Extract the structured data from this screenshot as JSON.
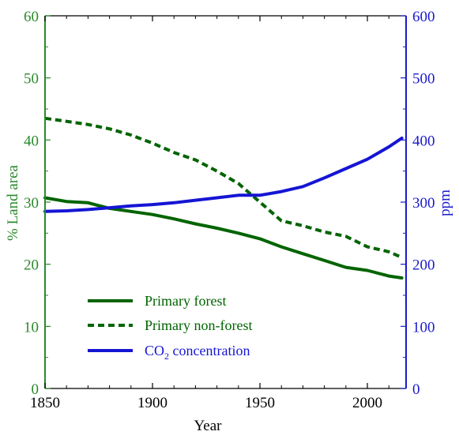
{
  "chart_data": {
    "type": "line",
    "xlabel": "Year",
    "ylabel_left": "% Land area",
    "ylabel_right": "ppm",
    "xlim": [
      1850,
      2018
    ],
    "ylim_left": [
      0,
      60
    ],
    "ylim_right": [
      0,
      600
    ],
    "xticks": [
      "1850",
      "1900",
      "1950",
      "2000"
    ],
    "yticks_left": [
      "0",
      "10",
      "20",
      "30",
      "40",
      "50",
      "60"
    ],
    "yticks_right": [
      "0",
      "100",
      "200",
      "300",
      "400",
      "500",
      "600"
    ],
    "colors": {
      "left_axis": "#2b8a2b",
      "right_axis": "#1a1acc"
    },
    "legend_position": "bottom-left",
    "series": [
      {
        "name": "Primary forest",
        "axis": "left",
        "color": "#006400",
        "style": "solid",
        "x": [
          1850,
          1860,
          1870,
          1880,
          1890,
          1900,
          1910,
          1920,
          1930,
          1940,
          1950,
          1960,
          1970,
          1980,
          1990,
          2000,
          2010,
          2016
        ],
        "y": [
          30.7,
          30.1,
          29.9,
          29.0,
          28.5,
          28.0,
          27.3,
          26.5,
          25.8,
          25.0,
          24.1,
          22.8,
          21.7,
          20.6,
          19.5,
          19.0,
          18.1,
          17.8
        ]
      },
      {
        "name": "Primary non-forest",
        "axis": "left",
        "color": "#006400",
        "style": "dashed",
        "x": [
          1850,
          1860,
          1870,
          1880,
          1890,
          1900,
          1910,
          1920,
          1930,
          1940,
          1950,
          1960,
          1970,
          1980,
          1990,
          2000,
          2010,
          2016
        ],
        "y": [
          43.5,
          43.0,
          42.5,
          41.8,
          40.8,
          39.5,
          38.0,
          36.8,
          35.0,
          33.0,
          30.0,
          27.0,
          26.2,
          25.2,
          24.5,
          22.8,
          22.0,
          21.1
        ]
      },
      {
        "name": "CO2 concentration",
        "axis": "right",
        "color": "#1515d4",
        "style": "solid",
        "x": [
          1850,
          1860,
          1870,
          1880,
          1890,
          1900,
          1910,
          1920,
          1930,
          1940,
          1950,
          1960,
          1970,
          1980,
          1990,
          2000,
          2010,
          2016
        ],
        "y": [
          285,
          286,
          288,
          291,
          294,
          296,
          299,
          303,
          307,
          311,
          311,
          317,
          325,
          339,
          354,
          369,
          389,
          403
        ]
      }
    ],
    "legend": [
      {
        "label": "Primary forest",
        "sub": "",
        "suffix": ""
      },
      {
        "label": "Primary non-forest",
        "sub": "",
        "suffix": ""
      },
      {
        "label": "CO",
        "sub": "2",
        "suffix": " concentration"
      }
    ]
  }
}
